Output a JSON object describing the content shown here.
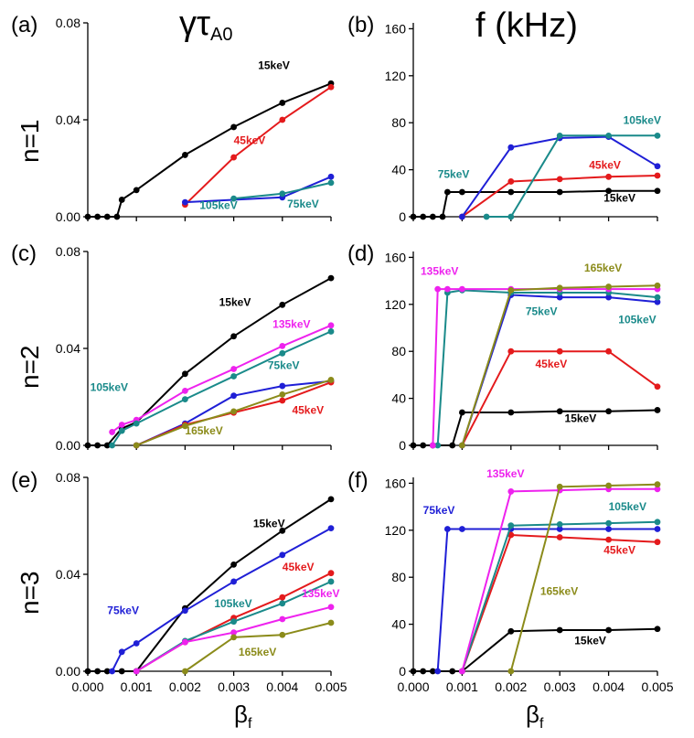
{
  "col_titles": [
    "γτ",
    "f (kHz)"
  ],
  "col_title_sub": "A0",
  "row_titles": [
    "n=1",
    "n=2",
    "n=3"
  ],
  "xlabel": "β",
  "xlabel_sub": "f",
  "colors": {
    "15keV": "#000000",
    "45keV": "#e41a1c",
    "75keV": "#1f1fd6",
    "105keV": "#1a8a8a",
    "135keV": "#ee22ee",
    "165keV": "#8b8b1a"
  },
  "chart_data": [
    {
      "id": "a",
      "label": "(a)",
      "type": "line",
      "title": "γτA0, n=1",
      "xlim": [
        0,
        0.005
      ],
      "ylim": [
        0,
        0.08
      ],
      "xticks": [],
      "yticks": [
        "0.00",
        "0.04",
        "0.08"
      ],
      "series": [
        {
          "name": "15keV",
          "x": [
            0,
            0.0002,
            0.0004,
            0.0006,
            0.0007,
            0.001,
            0.002,
            0.003,
            0.004,
            0.005
          ],
          "y": [
            0,
            0,
            0,
            0,
            0.007,
            0.011,
            0.0255,
            0.037,
            0.047,
            0.055
          ]
        },
        {
          "name": "45keV",
          "x": [
            0.002,
            0.003,
            0.004,
            0.005
          ],
          "y": [
            0.005,
            0.0245,
            0.04,
            0.0535
          ]
        },
        {
          "name": "75keV",
          "x": [
            0.002,
            0.004,
            0.005
          ],
          "y": [
            0.006,
            0.008,
            0.0165
          ]
        },
        {
          "name": "105keV",
          "x": [
            0.003,
            0.004,
            0.005
          ],
          "y": [
            0.0075,
            0.0095,
            0.014
          ]
        }
      ],
      "annotations": [
        {
          "text": "15keV",
          "series": "15keV",
          "x": 0.0035,
          "y": 0.061
        },
        {
          "text": "45keV",
          "series": "45keV",
          "x": 0.003,
          "y": 0.03
        },
        {
          "text": "105keV",
          "series": "105keV",
          "x": 0.0023,
          "y": 0.0033
        },
        {
          "text": "75keV",
          "series": "105keV",
          "x": 0.0041,
          "y": 0.0038
        }
      ]
    },
    {
      "id": "b",
      "label": "(b)",
      "type": "line",
      "title": "f (kHz), n=1",
      "xlim": [
        0,
        0.005
      ],
      "ylim": [
        0,
        165
      ],
      "xticks": [],
      "yticks": [
        "0",
        "40",
        "80",
        "120",
        "160"
      ],
      "series": [
        {
          "name": "15keV",
          "x": [
            0,
            0.0002,
            0.0004,
            0.0006,
            0.0007,
            0.001,
            0.002,
            0.003,
            0.004,
            0.005
          ],
          "y": [
            0,
            0,
            0,
            0,
            21,
            21,
            21,
            21,
            22,
            22
          ]
        },
        {
          "name": "45keV",
          "x": [
            0.001,
            0.002,
            0.003,
            0.004,
            0.005
          ],
          "y": [
            0,
            30,
            32,
            34,
            35
          ]
        },
        {
          "name": "75keV",
          "x": [
            0.001,
            0.002,
            0.003,
            0.004,
            0.005
          ],
          "y": [
            0,
            59,
            67,
            68,
            43
          ]
        },
        {
          "name": "105keV",
          "x": [
            0.0015,
            0.002,
            0.003,
            0.004,
            0.005
          ],
          "y": [
            0,
            0,
            69,
            69,
            69
          ]
        }
      ],
      "annotations": [
        {
          "text": "75keV",
          "series": "105keV",
          "x": 0.0005,
          "y": 33
        },
        {
          "text": "45keV",
          "series": "45keV",
          "x": 0.0036,
          "y": 41
        },
        {
          "text": "15keV",
          "series": "15keV",
          "x": 0.0039,
          "y": 13
        },
        {
          "text": "105keV",
          "series": "105keV",
          "x": 0.0043,
          "y": 79
        }
      ]
    },
    {
      "id": "c",
      "label": "(c)",
      "type": "line",
      "title": "γτA0, n=2",
      "xlim": [
        0,
        0.005
      ],
      "ylim": [
        0,
        0.08
      ],
      "xticks": [],
      "yticks": [
        "0.00",
        "0.04",
        "0.08"
      ],
      "series": [
        {
          "name": "15keV",
          "x": [
            0,
            0.0002,
            0.0004,
            0.0007,
            0.001,
            0.002,
            0.003,
            0.004,
            0.005
          ],
          "y": [
            0,
            0,
            0,
            0.007,
            0.0095,
            0.0295,
            0.045,
            0.058,
            0.069
          ]
        },
        {
          "name": "135keV",
          "x": [
            0.0005,
            0.0007,
            0.001,
            0.002,
            0.003,
            0.004,
            0.005
          ],
          "y": [
            0.0055,
            0.0085,
            0.0105,
            0.0225,
            0.0315,
            0.041,
            0.0495
          ]
        },
        {
          "name": "105keV",
          "x": [
            0.0005,
            0.0007,
            0.001,
            0.002,
            0.003,
            0.004,
            0.005
          ],
          "y": [
            0,
            0.006,
            0.009,
            0.019,
            0.0285,
            0.038,
            0.047
          ]
        },
        {
          "name": "75keV",
          "x": [
            0.001,
            0.002,
            0.003,
            0.004,
            0.005
          ],
          "y": [
            0,
            0.009,
            0.0205,
            0.0245,
            0.0265
          ]
        },
        {
          "name": "45keV",
          "x": [
            0.001,
            0.002,
            0.003,
            0.004,
            0.005
          ],
          "y": [
            0,
            0.0085,
            0.0135,
            0.0185,
            0.026
          ]
        },
        {
          "name": "165keV",
          "x": [
            0.001,
            0.002,
            0.003,
            0.004,
            0.005
          ],
          "y": [
            0,
            0.008,
            0.014,
            0.021,
            0.027
          ]
        }
      ],
      "annotations": [
        {
          "text": "15keV",
          "series": "15keV",
          "x": 0.0027,
          "y": 0.0575
        },
        {
          "text": "135keV",
          "series": "135keV",
          "x": 0.0038,
          "y": 0.0485
        },
        {
          "text": "75keV",
          "series": "105keV",
          "x": 0.0037,
          "y": 0.0315
        },
        {
          "text": "105keV",
          "series": "105keV",
          "x": 5e-05,
          "y": 0.0225
        },
        {
          "text": "45keV",
          "series": "45keV",
          "x": 0.0042,
          "y": 0.013
        },
        {
          "text": "165keV",
          "series": "165keV",
          "x": 0.002,
          "y": 0.0045
        }
      ]
    },
    {
      "id": "d",
      "label": "(d)",
      "type": "line",
      "title": "f (kHz), n=2",
      "xlim": [
        0,
        0.005
      ],
      "ylim": [
        0,
        165
      ],
      "xticks": [],
      "yticks": [
        "0",
        "40",
        "80",
        "120",
        "160"
      ],
      "series": [
        {
          "name": "15keV",
          "x": [
            0,
            0.0002,
            0.0004,
            0.0008,
            0.001,
            0.002,
            0.003,
            0.004,
            0.005
          ],
          "y": [
            0,
            0,
            0,
            0,
            28,
            28,
            29,
            29,
            30
          ]
        },
        {
          "name": "45keV",
          "x": [
            0.001,
            0.002,
            0.003,
            0.004,
            0.005
          ],
          "y": [
            0,
            80,
            80,
            80,
            50
          ]
        },
        {
          "name": "75keV",
          "x": [
            0.001,
            0.002,
            0.003,
            0.004,
            0.005
          ],
          "y": [
            0,
            128,
            126,
            126,
            122
          ]
        },
        {
          "name": "105keV",
          "x": [
            0.0005,
            0.0007,
            0.001,
            0.002,
            0.003,
            0.004,
            0.005
          ],
          "y": [
            0,
            130,
            132,
            130,
            130,
            130,
            126
          ]
        },
        {
          "name": "135keV",
          "x": [
            0.0004,
            0.0005,
            0.0007,
            0.001,
            0.002,
            0.003,
            0.004,
            0.005
          ],
          "y": [
            0,
            133,
            133,
            133,
            133,
            133,
            133,
            133
          ]
        },
        {
          "name": "165keV",
          "x": [
            0.001,
            0.002,
            0.003,
            0.004,
            0.005
          ],
          "y": [
            0,
            132,
            134,
            135,
            136
          ]
        }
      ],
      "annotations": [
        {
          "text": "135keV",
          "series": "135keV",
          "x": 0.00015,
          "y": 145
        },
        {
          "text": "165keV",
          "series": "165keV",
          "x": 0.0035,
          "y": 148
        },
        {
          "text": "75keV",
          "series": "105keV",
          "x": 0.0023,
          "y": 111
        },
        {
          "text": "105keV",
          "series": "105keV",
          "x": 0.0042,
          "y": 104
        },
        {
          "text": "45keV",
          "series": "45keV",
          "x": 0.0025,
          "y": 66
        },
        {
          "text": "15keV",
          "series": "15keV",
          "x": 0.0031,
          "y": 20
        }
      ]
    },
    {
      "id": "e",
      "label": "(e)",
      "type": "line",
      "title": "γτA0, n=3",
      "xlim": [
        0,
        0.005
      ],
      "ylim": [
        0,
        0.08
      ],
      "xticks": [
        "0.000",
        "0.001",
        "0.002",
        "0.003",
        "0.004",
        "0.005"
      ],
      "yticks": [
        "0.00",
        "0.04",
        "0.08"
      ],
      "series": [
        {
          "name": "15keV",
          "x": [
            0,
            0.0002,
            0.0004,
            0.0007,
            0.001,
            0.002,
            0.003,
            0.004,
            0.005
          ],
          "y": [
            0,
            0,
            0,
            0,
            0,
            0.026,
            0.044,
            0.058,
            0.071
          ]
        },
        {
          "name": "75keV",
          "x": [
            0.0005,
            0.0007,
            0.001,
            0.002,
            0.003,
            0.004,
            0.005
          ],
          "y": [
            0,
            0.008,
            0.0115,
            0.025,
            0.037,
            0.048,
            0.059
          ]
        },
        {
          "name": "45keV",
          "x": [
            0.001,
            0.002,
            0.003,
            0.004,
            0.005
          ],
          "y": [
            0,
            0.012,
            0.022,
            0.0305,
            0.0405
          ]
        },
        {
          "name": "105keV",
          "x": [
            0.001,
            0.002,
            0.003,
            0.004,
            0.005
          ],
          "y": [
            0,
            0.0125,
            0.0205,
            0.028,
            0.037
          ]
        },
        {
          "name": "135keV",
          "x": [
            0.001,
            0.002,
            0.003,
            0.004,
            0.005
          ],
          "y": [
            0,
            0.012,
            0.016,
            0.0215,
            0.0265
          ]
        },
        {
          "name": "165keV",
          "x": [
            0.002,
            0.003,
            0.004,
            0.005
          ],
          "y": [
            0,
            0.014,
            0.015,
            0.02
          ]
        }
      ],
      "annotations": [
        {
          "text": "15keV",
          "series": "15keV",
          "x": 0.0034,
          "y": 0.0595
        },
        {
          "text": "45keV",
          "series": "45keV",
          "x": 0.004,
          "y": 0.0415
        },
        {
          "text": "75keV",
          "series": "75keV",
          "x": 0.0004,
          "y": 0.0235
        },
        {
          "text": "105keV",
          "series": "105keV",
          "x": 0.0026,
          "y": 0.0265
        },
        {
          "text": "135keV",
          "series": "135keV",
          "x": 0.0044,
          "y": 0.0305
        },
        {
          "text": "165keV",
          "series": "165keV",
          "x": 0.0031,
          "y": 0.0065
        }
      ]
    },
    {
      "id": "f",
      "label": "(f)",
      "type": "line",
      "title": "f (kHz), n=3",
      "xlim": [
        0,
        0.005
      ],
      "ylim": [
        0,
        165
      ],
      "xticks": [
        "0.000",
        "0.001",
        "0.002",
        "0.003",
        "0.004",
        "0.005"
      ],
      "yticks": [
        "0",
        "40",
        "80",
        "120",
        "160"
      ],
      "series": [
        {
          "name": "15keV",
          "x": [
            0,
            0.0002,
            0.0004,
            0.0008,
            0.001,
            0.002,
            0.003,
            0.004,
            0.005
          ],
          "y": [
            0,
            0,
            0,
            0,
            0,
            34,
            35,
            35,
            36
          ]
        },
        {
          "name": "75keV",
          "x": [
            0.0005,
            0.0007,
            0.001,
            0.002,
            0.003,
            0.004,
            0.005
          ],
          "y": [
            0,
            121,
            121,
            121,
            121,
            121,
            121
          ]
        },
        {
          "name": "45keV",
          "x": [
            0.001,
            0.002,
            0.003,
            0.004,
            0.005
          ],
          "y": [
            0,
            116,
            114,
            112,
            110
          ]
        },
        {
          "name": "105keV",
          "x": [
            0.001,
            0.002,
            0.003,
            0.004,
            0.005
          ],
          "y": [
            0,
            124,
            125,
            126,
            127
          ]
        },
        {
          "name": "135keV",
          "x": [
            0.001,
            0.002,
            0.003,
            0.004,
            0.005
          ],
          "y": [
            0,
            153,
            154,
            155,
            155
          ]
        },
        {
          "name": "165keV",
          "x": [
            0.002,
            0.003,
            0.004,
            0.005
          ],
          "y": [
            0,
            157,
            158,
            159
          ]
        }
      ],
      "annotations": [
        {
          "text": "135keV",
          "series": "135keV",
          "x": 0.0015,
          "y": 165
        },
        {
          "text": "75keV",
          "series": "75keV",
          "x": 0.0002,
          "y": 134
        },
        {
          "text": "105keV",
          "series": "105keV",
          "x": 0.004,
          "y": 137
        },
        {
          "text": "45keV",
          "series": "45keV",
          "x": 0.0039,
          "y": 100
        },
        {
          "text": "165keV",
          "series": "165keV",
          "x": 0.0026,
          "y": 65
        },
        {
          "text": "15keV",
          "series": "15keV",
          "x": 0.0033,
          "y": 23
        }
      ]
    }
  ]
}
